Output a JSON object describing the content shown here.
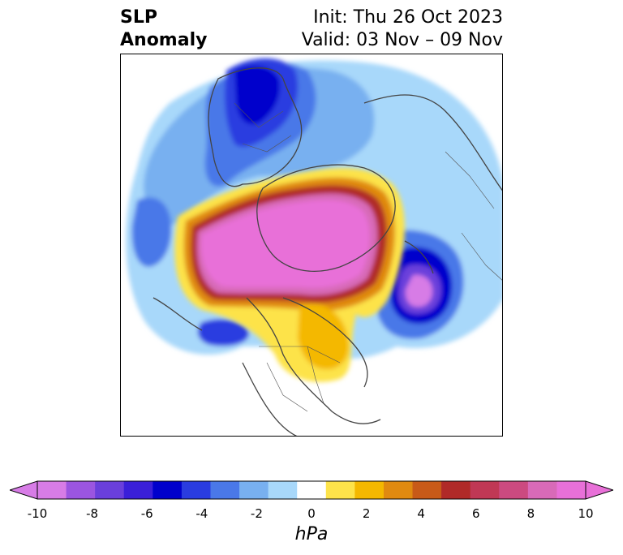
{
  "header": {
    "title_line1": "SLP",
    "title_line2": "Anomaly",
    "init": "Init: Thu 26 Oct 2023",
    "valid": "Valid: 03 Nov – 09 Nov"
  },
  "colorbar": {
    "units": "hPa",
    "ticks": [
      "-10",
      "-8",
      "-6",
      "-4",
      "-2",
      "0",
      "2",
      "4",
      "6",
      "8",
      "10"
    ],
    "levels": [
      -10,
      -9,
      -8,
      -7,
      -6,
      -5,
      -4,
      -3,
      -2,
      -1,
      1,
      2,
      3,
      4,
      5,
      6,
      7,
      8,
      9,
      10
    ],
    "colors": [
      "#d77ce6",
      "#9b55e0",
      "#6a3fdb",
      "#3a1fd8",
      "#0000cc",
      "#2a3ce0",
      "#4a78e8",
      "#78b0f0",
      "#a8d8fa",
      "#ffffff",
      "#fde34a",
      "#f4b800",
      "#e08a10",
      "#c85a18",
      "#b02a28",
      "#c03855",
      "#cc4a80",
      "#d86ab8",
      "#e870d8"
    ]
  }
}
